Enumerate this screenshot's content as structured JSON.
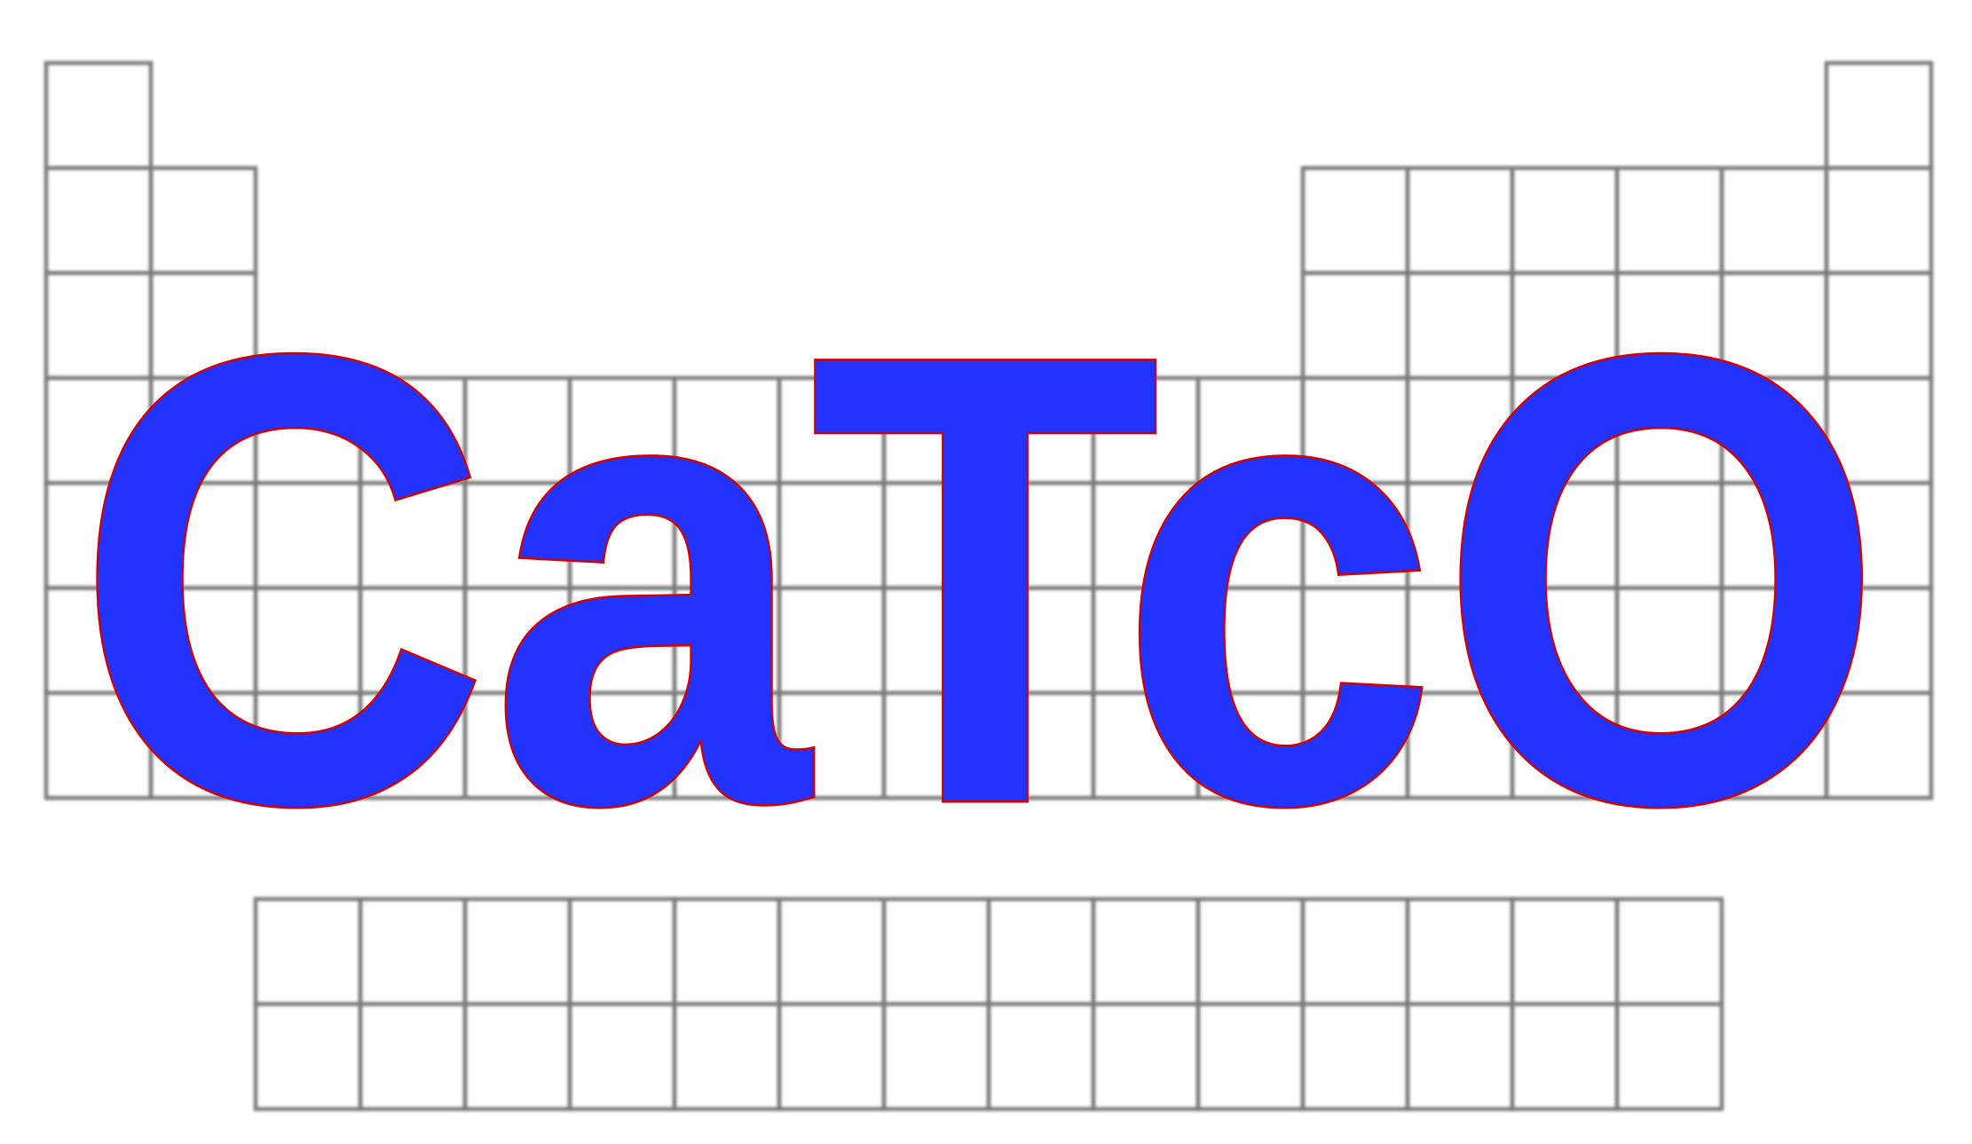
{
  "logo": {
    "text": "CaTcO",
    "fill_color": "#2233ff",
    "outline_color": "#d40000"
  },
  "grid": {
    "line_color": "#7a7a7a",
    "background": "#ffffff"
  }
}
